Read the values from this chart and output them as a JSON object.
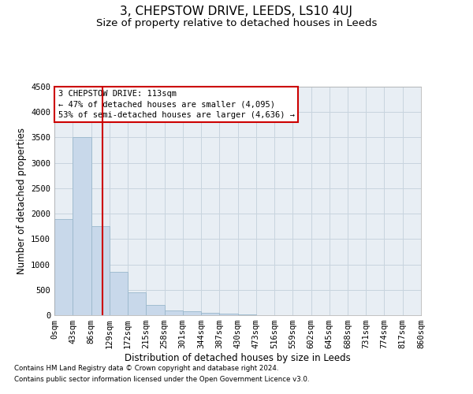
{
  "title": "3, CHEPSTOW DRIVE, LEEDS, LS10 4UJ",
  "subtitle": "Size of property relative to detached houses in Leeds",
  "xlabel": "Distribution of detached houses by size in Leeds",
  "ylabel": "Number of detached properties",
  "footnote1": "Contains HM Land Registry data © Crown copyright and database right 2024.",
  "footnote2": "Contains public sector information licensed under the Open Government Licence v3.0.",
  "bin_edges": [
    0,
    43,
    86,
    129,
    172,
    215,
    258,
    301,
    344,
    387,
    430,
    473,
    516,
    559,
    602,
    645,
    688,
    731,
    774,
    817,
    860
  ],
  "bar_heights": [
    1900,
    3500,
    1750,
    850,
    450,
    200,
    100,
    75,
    50,
    25,
    10,
    5,
    3,
    2,
    1,
    1,
    0,
    0,
    0,
    0
  ],
  "bar_color": "#c8d8ea",
  "bar_edge_color": "#9ab8cc",
  "grid_color": "#c8d4de",
  "background_color": "#e8eef4",
  "property_size": 113,
  "vline_color": "#cc0000",
  "annotation_line1": "3 CHEPSTOW DRIVE: 113sqm",
  "annotation_line2": "← 47% of detached houses are smaller (4,095)",
  "annotation_line3": "53% of semi-detached houses are larger (4,636) →",
  "annotation_box_color": "#ffffff",
  "annotation_box_edge": "#cc0000",
  "ylim": [
    0,
    4500
  ],
  "yticks": [
    0,
    500,
    1000,
    1500,
    2000,
    2500,
    3000,
    3500,
    4000,
    4500
  ],
  "tick_label_size": 7.5,
  "axis_label_size": 8.5,
  "title_fontsize": 11,
  "subtitle_fontsize": 9.5
}
